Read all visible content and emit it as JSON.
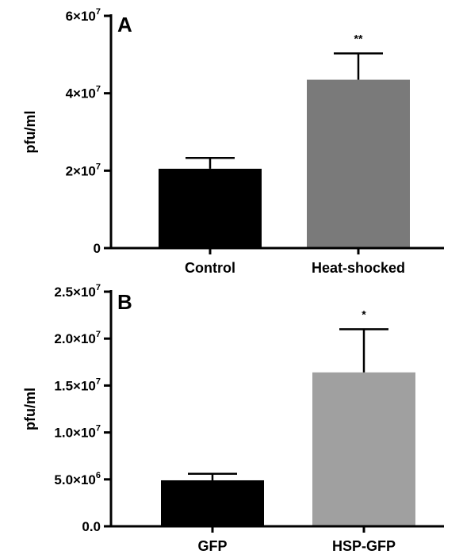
{
  "chart_data": [
    {
      "type": "bar",
      "panel_label": "A",
      "ylabel": "pfu/ml",
      "categories": [
        "Control",
        "Heat-shocked"
      ],
      "values": [
        20500000,
        43500000
      ],
      "errors": [
        2800000,
        6800000
      ],
      "significance": [
        "",
        "**"
      ],
      "colors": [
        "#000000",
        "#7a7a7a"
      ],
      "ylim": [
        0,
        60000000
      ],
      "yticks": [
        {
          "value": 0,
          "mantissa": "0",
          "exp": ""
        },
        {
          "value": 20000000,
          "mantissa": "2×10",
          "exp": "7"
        },
        {
          "value": 40000000,
          "mantissa": "4×10",
          "exp": "7"
        },
        {
          "value": 60000000,
          "mantissa": "6×10",
          "exp": "7"
        }
      ],
      "grid": false,
      "legend": "none"
    },
    {
      "type": "bar",
      "panel_label": "B",
      "ylabel": "pfu/ml",
      "categories": [
        "GFP",
        "HSP-GFP"
      ],
      "values": [
        4900000,
        16400000
      ],
      "errors": [
        700000,
        4600000
      ],
      "significance": [
        "",
        "*"
      ],
      "colors": [
        "#000000",
        "#a0a0a0"
      ],
      "ylim": [
        0,
        25000000
      ],
      "yticks": [
        {
          "value": 0,
          "mantissa": "0.0",
          "exp": ""
        },
        {
          "value": 5000000,
          "mantissa": "5.0×10",
          "exp": "6"
        },
        {
          "value": 10000000,
          "mantissa": "1.0×10",
          "exp": "7"
        },
        {
          "value": 15000000,
          "mantissa": "1.5×10",
          "exp": "7"
        },
        {
          "value": 20000000,
          "mantissa": "2.0×10",
          "exp": "7"
        },
        {
          "value": 25000000,
          "mantissa": "2.5×10",
          "exp": "7"
        }
      ],
      "grid": false,
      "legend": "none"
    }
  ]
}
